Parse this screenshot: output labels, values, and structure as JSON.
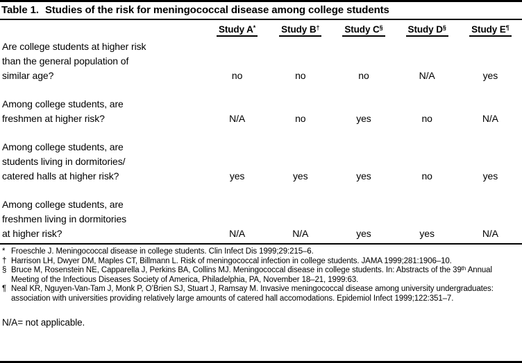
{
  "table": {
    "title_label": "Table 1.",
    "title_text": "Studies of the risk for meningococcal disease among college students",
    "columns": [
      {
        "label": "Study A",
        "sup": "*"
      },
      {
        "label": "Study B",
        "sup": "†"
      },
      {
        "label": "Study C",
        "sup": "§"
      },
      {
        "label": "Study D",
        "sup": "§"
      },
      {
        "label": "Study E",
        "sup": "¶"
      }
    ],
    "rows": [
      {
        "question": "Are college students at higher risk\nthan the general population of\nsimilar age?",
        "answers": [
          "no",
          "no",
          "no",
          "N/A",
          "yes"
        ]
      },
      {
        "question": "Among college students, are\nfreshmen at higher risk?",
        "answers": [
          "N/A",
          "no",
          "yes",
          "no",
          "N/A"
        ]
      },
      {
        "question": "Among college students, are\nstudents living in dormitories/\ncatered halls at higher risk?",
        "answers": [
          "yes",
          "yes",
          "yes",
          "no",
          "yes"
        ]
      },
      {
        "question": "Among college students, are\nfreshmen living in dormitories\nat higher risk?",
        "answers": [
          "N/A",
          "N/A",
          "yes",
          "yes",
          "N/A"
        ]
      }
    ]
  },
  "footnotes": [
    {
      "symbol": "*",
      "text": "Froeschle J. Meningococcal disease in college students. Clin Infect Dis 1999;29:215–6."
    },
    {
      "symbol": "†",
      "text": "Harrison LH, Dwyer DM, Maples CT, Billmann L. Risk of meningococcal infection in college students. JAMA 1999;281:1906–10."
    },
    {
      "symbol": "§",
      "text_start": "Bruce M, Rosenstein NE, Capparella J, Perkins BA, Collins MJ. Meningococcal disease in college students. In: Abstracts of the 39",
      "sup": "th",
      "text_end": " Annual Meeting of the Infectious Diseases Society of America, Philadelphia, PA, November 18–21, 1999:63."
    },
    {
      "symbol": "¶",
      "text": "Neal KR, Nguyen-Van-Tam J, Monk P, O’Brien SJ, Stuart J, Ramsay M. Invasive meningococcal disease among university undergraduates: association with universities providing relatively large amounts of catered hall accomodations. Epidemiol Infect 1999;122:351–7."
    }
  ],
  "na_note": "N/A= not applicable."
}
